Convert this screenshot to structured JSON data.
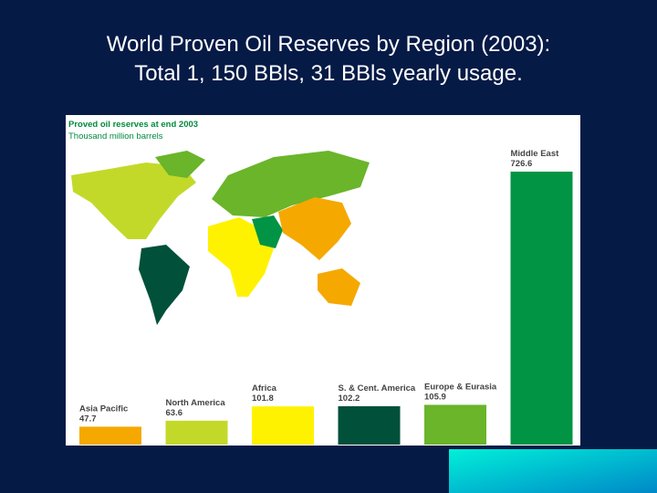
{
  "slide_title": [
    "World Proven Oil Reserves by Region (2003):",
    "Total 1, 150 BBls, 31 BBls yearly usage."
  ],
  "chart_data": {
    "type": "bar",
    "title": "Proved oil reserves at end 2003",
    "subtitle": "Thousand million barrels",
    "categories": [
      "Asia Pacific",
      "North America",
      "Africa",
      "S. & Cent. America",
      "Europe & Eurasia",
      "Middle East"
    ],
    "values": [
      47.7,
      63.6,
      101.8,
      102.2,
      105.9,
      726.6
    ],
    "colors": [
      "#f5a800",
      "#c3d92a",
      "#fff200",
      "#00503a",
      "#6ab52a",
      "#009444"
    ]
  }
}
